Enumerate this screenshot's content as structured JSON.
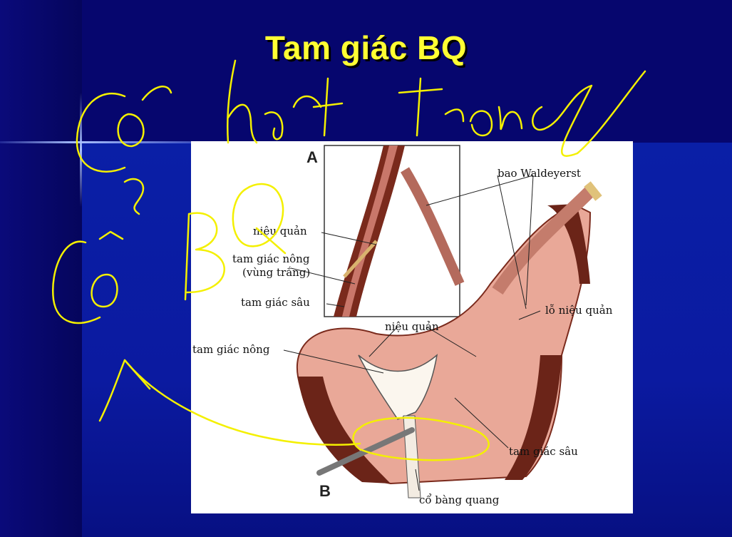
{
  "slide": {
    "title": "Tam giác BQ"
  },
  "figure": {
    "panel_a_letter": "A",
    "panel_b_letter": "B",
    "labels": {
      "bao_waldeyer": "bao Waldeyerst",
      "nieu_quan_a": "niệu quản",
      "tam_giac_nong_a": "tam giác nông",
      "vung_trang": "(vùng trắng)",
      "tam_giac_sau_a": "tam giác sâu",
      "lo_nieu_quan": "lỗ niệu quản",
      "nieu_quan_b": "niệu quản",
      "tam_giac_nong_b": "tam giác nông",
      "tam_giac_sau_b": "tam giác sâu",
      "co_bang_quang": "cổ bàng quang"
    }
  },
  "colors": {
    "background": "#06066e",
    "title": "#ffff33",
    "ink": "#f4f000",
    "tissue": "#e9a898",
    "muscle": "#6b2418"
  }
}
